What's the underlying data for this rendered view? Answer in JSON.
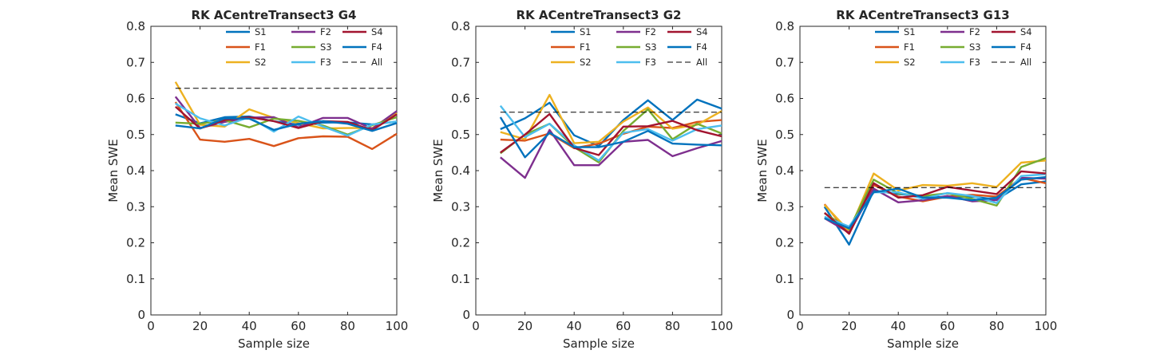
{
  "colors": {
    "S1": "#0072BD",
    "F1": "#D95319",
    "S2": "#EDB120",
    "F2": "#7E2F8E",
    "S3": "#77AC30",
    "F3": "#4DBEEE",
    "S4": "#A2142F",
    "F4": "#0072BD",
    "All": "#000000"
  },
  "chart_data": [
    {
      "type": "line",
      "title": "RK ACentreTransect3 G4",
      "xlabel": "Sample size",
      "ylabel": "Mean SWE",
      "xlim": [
        0,
        100
      ],
      "ylim": [
        0,
        0.8
      ],
      "xticks": [
        "0",
        "20",
        "40",
        "60",
        "80",
        "100"
      ],
      "yticks": [
        "0",
        "0.1",
        "0.2",
        "0.3",
        "0.4",
        "0.5",
        "0.6",
        "0.7",
        "0.8"
      ],
      "legend_position": "top-right",
      "x": [
        10,
        20,
        30,
        40,
        50,
        60,
        70,
        80,
        90,
        100
      ],
      "series": [
        {
          "name": "S1",
          "values": [
            0.556,
            0.531,
            0.548,
            0.55,
            0.537,
            0.527,
            0.533,
            0.534,
            0.528,
            0.536
          ]
        },
        {
          "name": "F1",
          "values": [
            0.59,
            0.486,
            0.48,
            0.488,
            0.468,
            0.49,
            0.495,
            0.494,
            0.46,
            0.502
          ]
        },
        {
          "name": "S2",
          "values": [
            0.646,
            0.527,
            0.522,
            0.57,
            0.546,
            0.532,
            0.517,
            0.518,
            0.518,
            0.56
          ]
        },
        {
          "name": "F2",
          "values": [
            0.605,
            0.518,
            0.535,
            0.547,
            0.548,
            0.52,
            0.546,
            0.546,
            0.516,
            0.565
          ]
        },
        {
          "name": "S3",
          "values": [
            0.533,
            0.53,
            0.54,
            0.52,
            0.544,
            0.538,
            0.525,
            0.5,
            0.526,
            0.548
          ]
        },
        {
          "name": "F3",
          "values": [
            0.586,
            0.545,
            0.525,
            0.548,
            0.508,
            0.55,
            0.522,
            0.497,
            0.528,
            0.536
          ]
        },
        {
          "name": "S4",
          "values": [
            0.577,
            0.517,
            0.54,
            0.548,
            0.537,
            0.518,
            0.537,
            0.535,
            0.512,
            0.556
          ]
        },
        {
          "name": "F4",
          "values": [
            0.525,
            0.517,
            0.545,
            0.544,
            0.513,
            0.53,
            0.537,
            0.53,
            0.51,
            0.532
          ]
        },
        {
          "name": "All",
          "values": [
            0.628,
            0.628,
            0.628,
            0.628,
            0.628,
            0.628,
            0.628,
            0.628,
            0.628,
            0.628
          ]
        }
      ]
    },
    {
      "type": "line",
      "title": "RK ACentreTransect3 G2",
      "xlabel": "Sample size",
      "ylabel": "Mean SWE",
      "xlim": [
        0,
        100
      ],
      "ylim": [
        0,
        0.8
      ],
      "xticks": [
        "0",
        "20",
        "40",
        "60",
        "80",
        "100"
      ],
      "yticks": [
        "0",
        "0.1",
        "0.2",
        "0.3",
        "0.4",
        "0.5",
        "0.6",
        "0.7",
        "0.8"
      ],
      "legend_position": "top-right",
      "x": [
        10,
        20,
        30,
        40,
        50,
        60,
        70,
        80,
        90,
        100
      ],
      "series": [
        {
          "name": "S1",
          "values": [
            0.515,
            0.545,
            0.588,
            0.498,
            0.468,
            0.54,
            0.595,
            0.54,
            0.597,
            0.572
          ]
        },
        {
          "name": "F1",
          "values": [
            0.486,
            0.483,
            0.503,
            0.462,
            0.475,
            0.502,
            0.522,
            0.518,
            0.535,
            0.54
          ]
        },
        {
          "name": "S2",
          "values": [
            0.507,
            0.487,
            0.61,
            0.476,
            0.48,
            0.536,
            0.575,
            0.516,
            0.527,
            0.565
          ]
        },
        {
          "name": "F2",
          "values": [
            0.437,
            0.38,
            0.513,
            0.415,
            0.415,
            0.48,
            0.485,
            0.44,
            0.462,
            0.482
          ]
        },
        {
          "name": "S3",
          "values": [
            0.448,
            0.5,
            0.53,
            0.465,
            0.423,
            0.51,
            0.57,
            0.487,
            0.53,
            0.503
          ]
        },
        {
          "name": "F3",
          "values": [
            0.58,
            0.493,
            0.53,
            0.47,
            0.428,
            0.505,
            0.515,
            0.483,
            0.515,
            0.525
          ]
        },
        {
          "name": "S4",
          "values": [
            0.45,
            0.5,
            0.557,
            0.463,
            0.443,
            0.522,
            0.523,
            0.538,
            0.512,
            0.495
          ]
        },
        {
          "name": "F4",
          "values": [
            0.548,
            0.437,
            0.505,
            0.465,
            0.465,
            0.48,
            0.51,
            0.475,
            0.472,
            0.47
          ]
        },
        {
          "name": "All",
          "values": [
            0.562,
            0.562,
            0.562,
            0.562,
            0.562,
            0.562,
            0.562,
            0.562,
            0.562,
            0.562
          ]
        }
      ]
    },
    {
      "type": "line",
      "title": "RK ACentreTransect3 G13",
      "xlabel": "Sample size",
      "ylabel": "Mean SWE",
      "xlim": [
        0,
        100
      ],
      "ylim": [
        0,
        0.8
      ],
      "xticks": [
        "0",
        "20",
        "40",
        "60",
        "80",
        "100"
      ],
      "yticks": [
        "0",
        "0.1",
        "0.2",
        "0.3",
        "0.4",
        "0.5",
        "0.6",
        "0.7",
        "0.8"
      ],
      "legend_position": "top-right",
      "x": [
        10,
        20,
        30,
        40,
        50,
        60,
        70,
        80,
        90,
        100
      ],
      "series": [
        {
          "name": "S1",
          "values": [
            0.3,
            0.195,
            0.345,
            0.335,
            0.33,
            0.325,
            0.328,
            0.32,
            0.362,
            0.37
          ]
        },
        {
          "name": "F1",
          "values": [
            0.307,
            0.225,
            0.36,
            0.328,
            0.315,
            0.328,
            0.333,
            0.328,
            0.38,
            0.365
          ]
        },
        {
          "name": "S2",
          "values": [
            0.305,
            0.232,
            0.392,
            0.345,
            0.36,
            0.358,
            0.365,
            0.355,
            0.422,
            0.428
          ]
        },
        {
          "name": "F2",
          "values": [
            0.268,
            0.228,
            0.35,
            0.312,
            0.318,
            0.33,
            0.315,
            0.318,
            0.38,
            0.378
          ]
        },
        {
          "name": "S3",
          "values": [
            0.282,
            0.238,
            0.375,
            0.337,
            0.33,
            0.337,
            0.322,
            0.303,
            0.41,
            0.435
          ]
        },
        {
          "name": "F3",
          "values": [
            0.272,
            0.245,
            0.34,
            0.34,
            0.322,
            0.338,
            0.33,
            0.31,
            0.385,
            0.39
          ]
        },
        {
          "name": "S4",
          "values": [
            0.283,
            0.225,
            0.365,
            0.325,
            0.332,
            0.355,
            0.345,
            0.335,
            0.398,
            0.392
          ]
        },
        {
          "name": "F4",
          "values": [
            0.268,
            0.24,
            0.34,
            0.35,
            0.325,
            0.325,
            0.318,
            0.325,
            0.375,
            0.382
          ]
        },
        {
          "name": "All",
          "values": [
            0.353,
            0.353,
            0.353,
            0.353,
            0.353,
            0.353,
            0.353,
            0.353,
            0.353,
            0.353
          ]
        }
      ]
    }
  ]
}
